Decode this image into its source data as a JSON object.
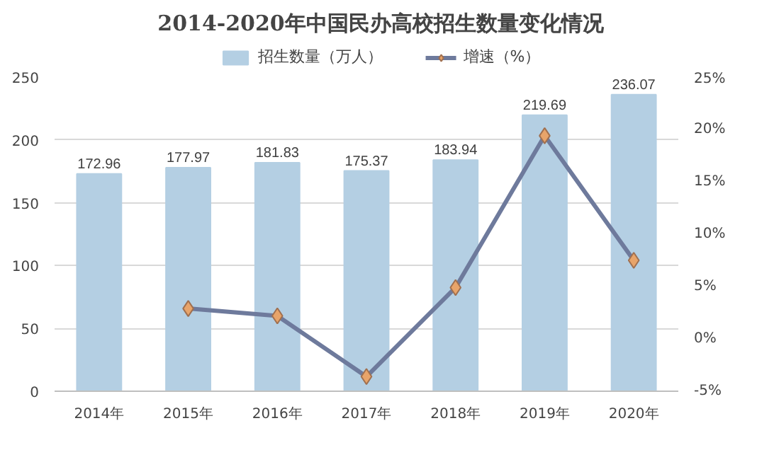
{
  "chart_data": {
    "type": "bar",
    "title": "2014-2020年中国民办高校招生数量变化情况",
    "categories": [
      "2014年",
      "2015年",
      "2016年",
      "2017年",
      "2018年",
      "2019年",
      "2020年"
    ],
    "series": [
      {
        "name": "招生数量（万人）",
        "color": "#b4cfe3",
        "values": [
          172.96,
          177.97,
          181.83,
          175.37,
          183.94,
          219.69,
          236.07
        ],
        "data_labels": true
      },
      {
        "name": "增速（%）",
        "type": "line",
        "axis": "y2",
        "color": "#6e7a9c",
        "marker": "diamond",
        "values": [
          null,
          2.9,
          2.2,
          -3.6,
          4.9,
          19.4,
          7.5
        ]
      }
    ],
    "ylim": [
      0,
      250
    ],
    "yticks": [
      0,
      50,
      100,
      150,
      200,
      250
    ],
    "y2lim": [
      -5,
      25
    ],
    "y2ticks": [
      {
        "value": -5,
        "label": "-5%"
      },
      {
        "value": 0,
        "label": "0%"
      },
      {
        "value": 5,
        "label": "5%"
      },
      {
        "value": 10,
        "label": "10%"
      },
      {
        "value": 15,
        "label": "15%"
      },
      {
        "value": 20,
        "label": "20%"
      },
      {
        "value": 25,
        "label": "25%"
      }
    ],
    "grid": "y",
    "legend": "top"
  }
}
